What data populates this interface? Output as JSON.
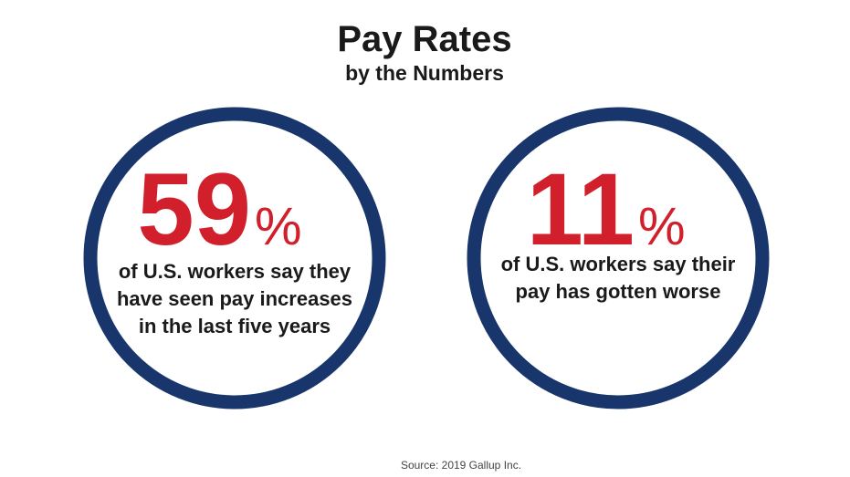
{
  "header": {
    "title": "Pay Rates",
    "subtitle": "by the Numbers"
  },
  "stats": [
    {
      "number": "59",
      "unit": "%",
      "lines": [
        "of U.S. workers say they",
        "have seen pay increases",
        "in the last five years"
      ]
    },
    {
      "number": "11",
      "unit": "%",
      "lines": [
        "of U.S. workers say their",
        "pay has gotten worse"
      ]
    }
  ],
  "source": "Source: 2019 Gallup Inc."
}
